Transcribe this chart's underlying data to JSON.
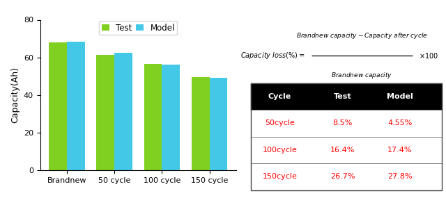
{
  "categories": [
    "Brandnew",
    "50 cycle",
    "100 cycle",
    "150 cycle"
  ],
  "test_values": [
    68,
    61.5,
    56.5,
    49.5
  ],
  "model_values": [
    68.5,
    62.5,
    56.0,
    49.0
  ],
  "bar_color_test": "#7FD020",
  "bar_color_model": "#44C8E8",
  "ylabel": "Capacity(Ah)",
  "ylim": [
    0,
    80
  ],
  "yticks": [
    0,
    20,
    40,
    60,
    80
  ],
  "legend_labels": [
    "Test",
    "Model"
  ],
  "table_header": [
    "Cycle",
    "Test",
    "Model"
  ],
  "table_rows": [
    [
      "50cycle",
      "8.5%",
      "4.55%"
    ],
    [
      "100cycle",
      "16.4%",
      "17.4%"
    ],
    [
      "150cycle",
      "26.7%",
      "27.8%"
    ]
  ],
  "bg_color": "#FFFFFF"
}
